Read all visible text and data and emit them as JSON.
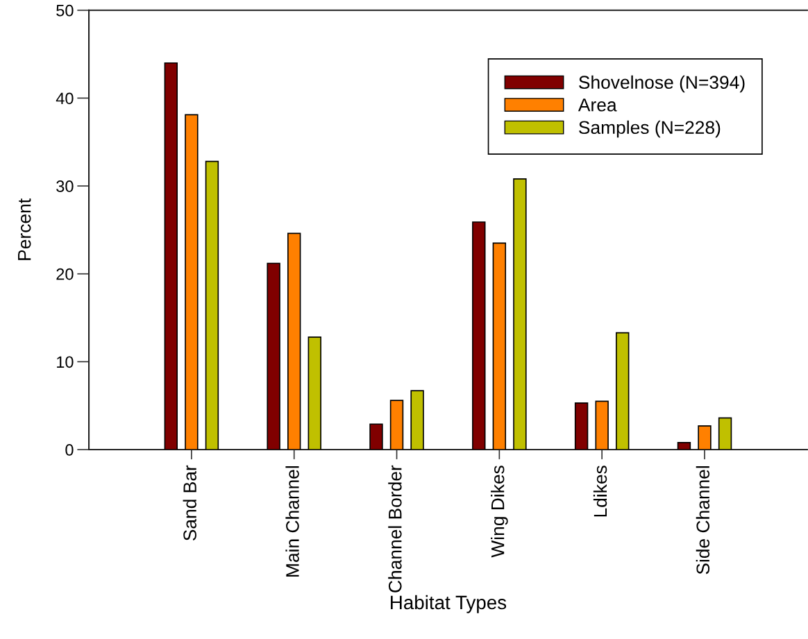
{
  "chart_data": {
    "type": "bar",
    "xlabel": "Habitat Types",
    "ylabel": "Percent",
    "categories": [
      "Sand Bar",
      "Main Channel",
      "Channel Border",
      "Wing Dikes",
      "Ldikes",
      "Side Channel"
    ],
    "series": [
      {
        "name": "Shovelnose (N=394)",
        "color": "#800000",
        "values": [
          44.0,
          21.2,
          2.9,
          25.9,
          5.3,
          0.8
        ]
      },
      {
        "name": "Area",
        "color": "#ff8000",
        "values": [
          38.1,
          24.6,
          5.6,
          23.5,
          5.5,
          2.7
        ]
      },
      {
        "name": "Samples (N=228)",
        "color": "#c0c000",
        "values": [
          32.8,
          12.8,
          6.7,
          30.8,
          13.3,
          3.6
        ]
      }
    ],
    "ylim": [
      0,
      50
    ],
    "yticks": [
      0,
      10,
      20,
      30,
      40,
      50
    ],
    "grid": false,
    "legend": "top right"
  }
}
